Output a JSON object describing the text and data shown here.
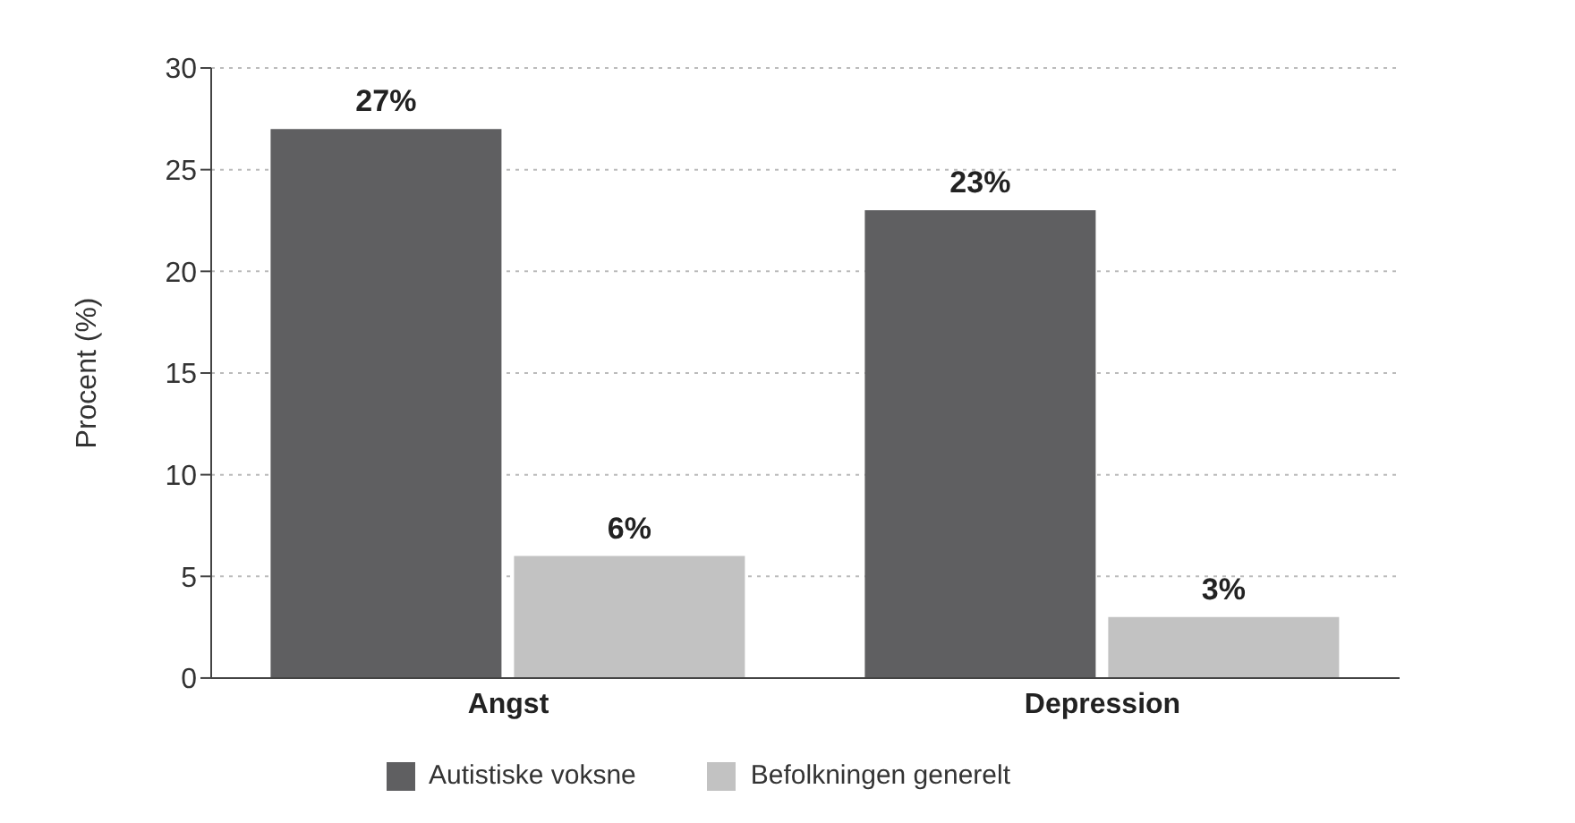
{
  "chart_data": {
    "type": "bar",
    "ylabel": "Procent (%)",
    "categories": [
      "Angst",
      "Depression"
    ],
    "series": [
      {
        "name": "Autistiske voksne",
        "color": "#5f5f61",
        "values": [
          27,
          23
        ],
        "value_labels": [
          "27%",
          "23%"
        ]
      },
      {
        "name": "Befolkningen generelt",
        "color": "#c2c2c2",
        "values": [
          6,
          3
        ],
        "value_labels": [
          "6%",
          "3%"
        ]
      }
    ],
    "ylim": [
      0,
      30
    ],
    "yticks": [
      0,
      5,
      10,
      15,
      20,
      25,
      30
    ],
    "grid": "y",
    "legend": "bottom"
  }
}
